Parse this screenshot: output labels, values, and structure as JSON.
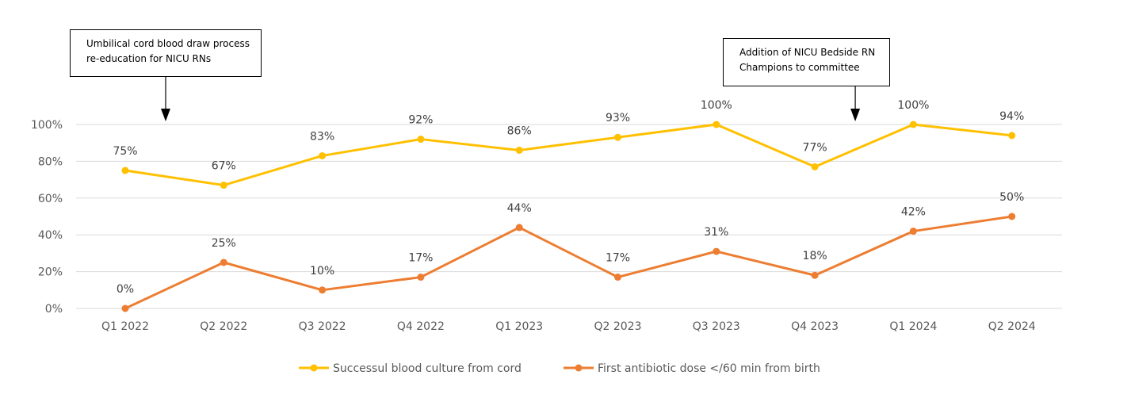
{
  "chart_data": {
    "type": "line",
    "categories": [
      "Q1 2022",
      "Q2 2022",
      "Q3 2022",
      "Q4 2022",
      "Q1 2023",
      "Q2 2023",
      "Q3 2023",
      "Q4 2023",
      "Q1 2024",
      "Q2 2024"
    ],
    "series": [
      {
        "name": "Successul blood culture from cord",
        "values": [
          75,
          67,
          83,
          92,
          86,
          93,
          100,
          77,
          100,
          94
        ],
        "labels": [
          "75%",
          "67%",
          "83%",
          "92%",
          "86%",
          "93%",
          "100%",
          "77%",
          "100%",
          "94%"
        ],
        "color": "#FFC000"
      },
      {
        "name": "First antibiotic dose </60 min from birth",
        "values": [
          0,
          25,
          10,
          17,
          44,
          17,
          31,
          18,
          42,
          50
        ],
        "labels": [
          "0%",
          "25%",
          "10%",
          "17%",
          "44%",
          "17%",
          "31%",
          "18%",
          "42%",
          "50%"
        ],
        "color": "#ED7D31"
      }
    ],
    "y_ticks": [
      "0%",
      "20%",
      "40%",
      "60%",
      "80%",
      "100%"
    ],
    "ylim": [
      0,
      100
    ],
    "grid": true,
    "legend_position": "bottom",
    "annotations": [
      {
        "lines": [
          "Umbilical cord blood draw process",
          "re-education for NICU RNs"
        ],
        "category": "Q1 2022"
      },
      {
        "lines": [
          "Addition of NICU Bedside RN",
          "Champions to committee"
        ],
        "category": "Q4 2023"
      }
    ]
  }
}
